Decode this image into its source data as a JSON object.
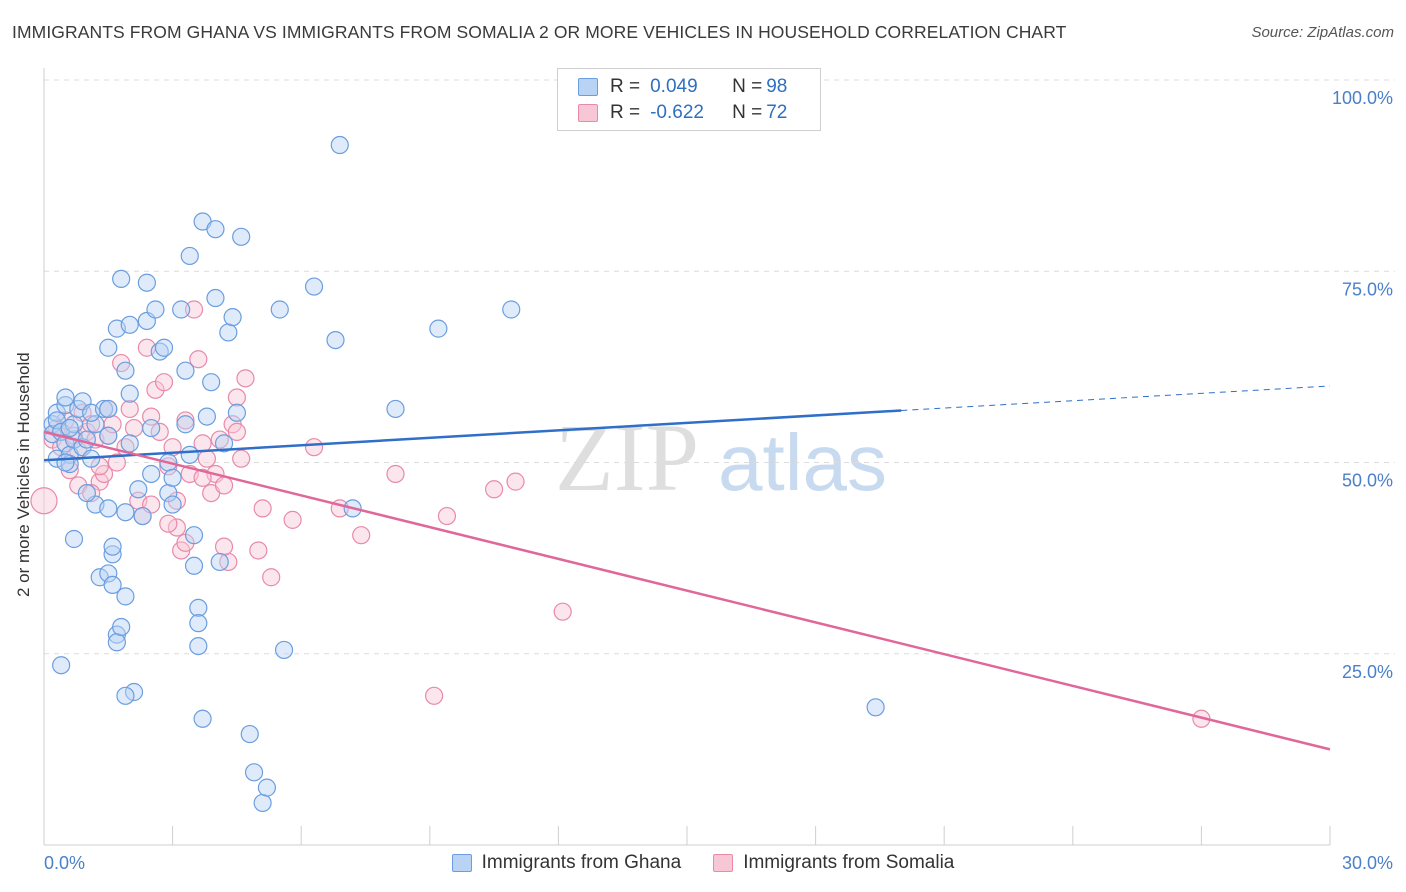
{
  "title": "IMMIGRANTS FROM GHANA VS IMMIGRANTS FROM SOMALIA 2 OR MORE VEHICLES IN HOUSEHOLD CORRELATION CHART",
  "source": "Source: ZipAtlas.com",
  "watermark": {
    "zip": "ZIP",
    "atlas": "atlas"
  },
  "colors": {
    "ghana_fill": "#b8d3f3",
    "ghana_stroke": "#6a9ee0",
    "ghana_line": "#2f6fc9",
    "somalia_fill": "#f8c7d6",
    "somalia_stroke": "#e88aa9",
    "somalia_line": "#e0679a",
    "grid": "#dcdcdc",
    "tick": "#4a80c9"
  },
  "legend": {
    "rows": [
      {
        "r_label": "R = ",
        "r_value": "0.049",
        "n_label": "N = ",
        "n_value": "98"
      },
      {
        "r_label": "R = ",
        "r_value": "-0.622",
        "n_label": "N = ",
        "n_value": "72"
      }
    ]
  },
  "bottom_legend": [
    "Immigrants from Ghana",
    "Immigrants from Somalia"
  ],
  "chart_data": {
    "type": "scatter",
    "title": "IMMIGRANTS FROM GHANA VS IMMIGRANTS FROM SOMALIA 2 OR MORE VEHICLES IN HOUSEHOLD CORRELATION CHART",
    "xlabel": "",
    "ylabel": "2 or more Vehicles in Household",
    "xlim": [
      0,
      30
    ],
    "ylim": [
      0,
      100
    ],
    "x_tick_labels": [
      "0.0%",
      "30.0%"
    ],
    "y_ticks": [
      25,
      50,
      75,
      100
    ],
    "y_tick_labels": [
      "25.0%",
      "50.0%",
      "75.0%",
      "100.0%"
    ],
    "grid": "horizontal dashed",
    "series": [
      {
        "name": "Immigrants from Ghana",
        "r": 0.049,
        "n": 98,
        "trend": {
          "x": [
            0,
            20
          ],
          "y": [
            50.3,
            56.8
          ],
          "dashed_extension_to": [
            30,
            60.0
          ]
        },
        "points": [
          [
            0.2,
            55.0
          ],
          [
            0.2,
            53.7
          ],
          [
            0.3,
            50.5
          ],
          [
            0.3,
            56.5
          ],
          [
            0.3,
            55.5
          ],
          [
            0.4,
            54.0
          ],
          [
            0.5,
            57.5
          ],
          [
            0.5,
            58.5
          ],
          [
            0.5,
            52.5
          ],
          [
            0.6,
            51.0
          ],
          [
            0.6,
            49.8
          ],
          [
            0.5,
            50.0
          ],
          [
            0.7,
            53.0
          ],
          [
            0.7,
            55.0
          ],
          [
            0.8,
            57.0
          ],
          [
            0.9,
            58.0
          ],
          [
            0.6,
            54.5
          ],
          [
            0.9,
            52.0
          ],
          [
            1.0,
            53.0
          ],
          [
            1.1,
            50.5
          ],
          [
            1.2,
            55.0
          ],
          [
            1.1,
            56.5
          ],
          [
            1.2,
            44.5
          ],
          [
            1.0,
            46.0
          ],
          [
            0.7,
            40.0
          ],
          [
            1.5,
            65.0
          ],
          [
            1.5,
            53.5
          ],
          [
            1.3,
            35.0
          ],
          [
            1.5,
            35.5
          ],
          [
            1.5,
            44.0
          ],
          [
            1.4,
            57.0
          ],
          [
            1.5,
            57.0
          ],
          [
            1.6,
            34.0
          ],
          [
            1.6,
            38.0
          ],
          [
            1.6,
            39.0
          ],
          [
            1.7,
            67.5
          ],
          [
            1.7,
            27.5
          ],
          [
            1.7,
            26.5
          ],
          [
            1.8,
            28.5
          ],
          [
            1.8,
            74.0
          ],
          [
            1.9,
            62.0
          ],
          [
            1.9,
            43.5
          ],
          [
            1.9,
            32.5
          ],
          [
            2.0,
            52.5
          ],
          [
            2.0,
            59.0
          ],
          [
            2.0,
            68.0
          ],
          [
            2.1,
            20.0
          ],
          [
            2.2,
            46.5
          ],
          [
            2.3,
            43.0
          ],
          [
            2.4,
            68.5
          ],
          [
            2.4,
            73.5
          ],
          [
            2.5,
            48.5
          ],
          [
            2.5,
            54.5
          ],
          [
            2.6,
            70.0
          ],
          [
            2.7,
            64.5
          ],
          [
            2.8,
            65.0
          ],
          [
            2.9,
            50.0
          ],
          [
            2.9,
            46.0
          ],
          [
            3.0,
            44.5
          ],
          [
            3.0,
            48.0
          ],
          [
            3.2,
            70.0
          ],
          [
            3.3,
            55.0
          ],
          [
            3.3,
            62.0
          ],
          [
            3.4,
            77.0
          ],
          [
            3.4,
            51.0
          ],
          [
            3.5,
            36.5
          ],
          [
            3.5,
            40.5
          ],
          [
            3.6,
            26.0
          ],
          [
            3.6,
            31.0
          ],
          [
            3.6,
            29.0
          ],
          [
            3.7,
            16.5
          ],
          [
            3.7,
            81.5
          ],
          [
            3.8,
            56.0
          ],
          [
            3.9,
            60.5
          ],
          [
            4.0,
            71.5
          ],
          [
            4.0,
            80.5
          ],
          [
            4.1,
            37.0
          ],
          [
            4.2,
            52.5
          ],
          [
            4.3,
            67.0
          ],
          [
            4.4,
            69.0
          ],
          [
            4.5,
            56.5
          ],
          [
            4.6,
            79.5
          ],
          [
            4.8,
            14.5
          ],
          [
            4.9,
            9.5
          ],
          [
            5.1,
            5.5
          ],
          [
            5.2,
            7.5
          ],
          [
            5.5,
            70.0
          ],
          [
            5.6,
            25.5
          ],
          [
            6.3,
            73.0
          ],
          [
            6.8,
            66.0
          ],
          [
            6.9,
            91.5
          ],
          [
            7.2,
            44.0
          ],
          [
            8.2,
            57.0
          ],
          [
            9.2,
            67.5
          ],
          [
            10.9,
            70.0
          ],
          [
            19.4,
            18.0
          ],
          [
            0.4,
            23.5
          ],
          [
            1.9,
            19.5
          ]
        ]
      },
      {
        "name": "Immigrants from Somalia",
        "r": -0.622,
        "n": 72,
        "trend": {
          "x": [
            0,
            30
          ],
          "y": [
            54.0,
            12.5
          ]
        },
        "points": [
          [
            0.0,
            45.0
          ],
          [
            0.2,
            53.0
          ],
          [
            0.3,
            54.5
          ],
          [
            0.4,
            52.0
          ],
          [
            0.5,
            55.5
          ],
          [
            0.6,
            49.0
          ],
          [
            0.7,
            53.5
          ],
          [
            0.8,
            51.5
          ],
          [
            0.9,
            56.5
          ],
          [
            1.0,
            54.0
          ],
          [
            1.1,
            55.0
          ],
          [
            1.2,
            53.0
          ],
          [
            1.3,
            47.5
          ],
          [
            1.4,
            48.5
          ],
          [
            1.5,
            53.5
          ],
          [
            1.5,
            57.0
          ],
          [
            1.6,
            55.0
          ],
          [
            1.7,
            50.0
          ],
          [
            1.8,
            63.0
          ],
          [
            1.9,
            52.0
          ],
          [
            2.0,
            57.0
          ],
          [
            2.1,
            54.5
          ],
          [
            2.2,
            45.0
          ],
          [
            2.3,
            43.0
          ],
          [
            2.4,
            65.0
          ],
          [
            2.5,
            56.0
          ],
          [
            2.6,
            59.5
          ],
          [
            2.7,
            54.0
          ],
          [
            2.8,
            60.5
          ],
          [
            2.9,
            49.5
          ],
          [
            3.0,
            52.0
          ],
          [
            3.1,
            41.5
          ],
          [
            3.2,
            38.5
          ],
          [
            3.3,
            55.5
          ],
          [
            3.4,
            48.5
          ],
          [
            3.5,
            70.0
          ],
          [
            3.6,
            63.5
          ],
          [
            3.7,
            52.5
          ],
          [
            3.8,
            50.5
          ],
          [
            3.9,
            46.0
          ],
          [
            4.0,
            48.5
          ],
          [
            4.1,
            53.0
          ],
          [
            4.2,
            47.0
          ],
          [
            4.3,
            37.0
          ],
          [
            4.4,
            55.0
          ],
          [
            4.5,
            58.5
          ],
          [
            4.6,
            50.5
          ],
          [
            4.7,
            61.0
          ],
          [
            5.0,
            38.5
          ],
          [
            5.3,
            35.0
          ],
          [
            5.8,
            42.5
          ],
          [
            6.3,
            52.0
          ],
          [
            6.9,
            44.0
          ],
          [
            7.4,
            40.5
          ],
          [
            8.2,
            48.5
          ],
          [
            9.4,
            43.0
          ],
          [
            10.5,
            46.5
          ],
          [
            11.0,
            47.5
          ],
          [
            12.1,
            30.5
          ],
          [
            9.1,
            19.5
          ],
          [
            27.0,
            16.5
          ],
          [
            0.8,
            47.0
          ],
          [
            1.1,
            46.0
          ],
          [
            1.3,
            49.5
          ],
          [
            2.5,
            44.5
          ],
          [
            2.9,
            42.0
          ],
          [
            3.1,
            45.0
          ],
          [
            3.7,
            48.0
          ],
          [
            4.2,
            39.0
          ],
          [
            4.5,
            54.0
          ],
          [
            5.1,
            44.0
          ],
          [
            3.3,
            39.5
          ]
        ]
      }
    ]
  }
}
